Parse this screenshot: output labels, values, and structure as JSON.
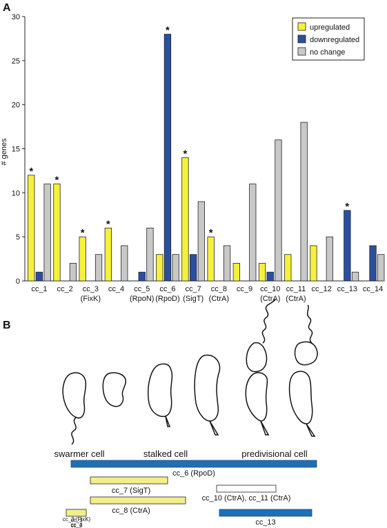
{
  "panel_a_letter": "A",
  "panel_b_letter": "B",
  "chart_data": {
    "type": "bar",
    "ylabel": "# genes",
    "xlabel": "",
    "title": "",
    "ylim": [
      0,
      30
    ],
    "yticks": [
      0,
      5,
      10,
      15,
      20,
      25,
      30
    ],
    "categories": [
      "cc_1",
      "cc_2",
      "cc_3",
      "cc_4",
      "cc_5",
      "cc_6",
      "cc_7",
      "cc_8",
      "cc_9",
      "cc_10",
      "cc_11",
      "cc_12",
      "cc_13",
      "cc_14"
    ],
    "category_sublabels": [
      "",
      "",
      "(FixK)",
      "",
      "(RpoN)",
      "(RpoD)",
      "(SigT)",
      "(CtrA)",
      "",
      "(CtrA)",
      "(CtrA)",
      "",
      "",
      ""
    ],
    "series": [
      {
        "name": "upregulated",
        "color": "#f5f03c",
        "values": [
          12,
          11,
          5,
          6,
          0,
          3,
          14,
          5,
          2,
          2,
          3,
          4,
          0,
          0
        ]
      },
      {
        "name": "downregulated",
        "color": "#2b4fa0",
        "values": [
          1,
          0,
          0,
          0,
          1,
          28,
          3,
          0,
          0,
          1,
          0,
          0,
          8,
          4
        ]
      },
      {
        "name": "no change",
        "color": "#c8c8c8",
        "values": [
          11,
          2,
          3,
          4,
          6,
          3,
          9,
          4,
          11,
          16,
          18,
          5,
          1,
          3
        ]
      }
    ],
    "significance": [
      {
        "category": "cc_1",
        "series": "upregulated",
        "mark": "*"
      },
      {
        "category": "cc_2",
        "series": "upregulated",
        "mark": "*"
      },
      {
        "category": "cc_3",
        "series": "upregulated",
        "mark": "*"
      },
      {
        "category": "cc_4",
        "series": "upregulated",
        "mark": "*"
      },
      {
        "category": "cc_6",
        "series": "downregulated",
        "mark": "*"
      },
      {
        "category": "cc_7",
        "series": "upregulated",
        "mark": "*"
      },
      {
        "category": "cc_8",
        "series": "upregulated",
        "mark": "*"
      },
      {
        "category": "cc_13",
        "series": "downregulated",
        "mark": "*"
      }
    ],
    "legend_position": "top-right",
    "grid": false
  },
  "cell_cycle": {
    "stage_labels": [
      "swarmer cell",
      "stalked cell",
      "predivisional cell"
    ],
    "timeline_bars": [
      {
        "label": "cc_6 (RpoD)",
        "color": "#1f6fb4"
      },
      {
        "label": "cc_7 (SigT)",
        "color": "#f2ee8a"
      },
      {
        "label": "cc_10 (CtrA), cc_11 (CtrA)",
        "color": "#ffffff"
      },
      {
        "label": "cc_8 (CtrA)",
        "color": "#f2ee8a"
      },
      {
        "label": "cc_13",
        "color": "#1f6fb4"
      },
      {
        "label_lines": [
          "cc_1",
          "cc_2",
          "cc_3 (FixK)",
          "cc_4"
        ],
        "color": "#f2ee8a"
      }
    ]
  }
}
